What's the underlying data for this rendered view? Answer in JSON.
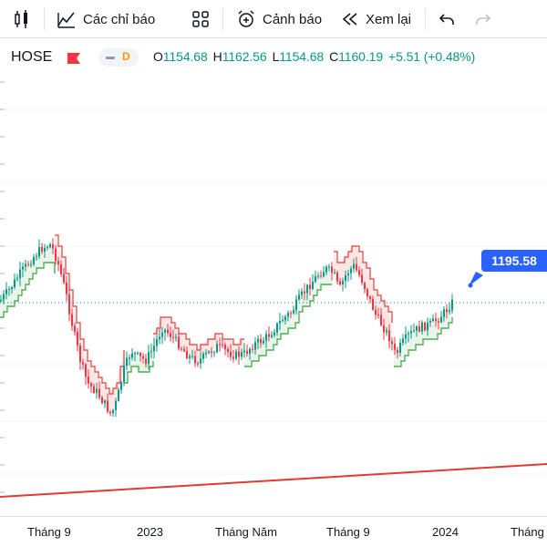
{
  "toolbar": {
    "indicators_label": "Các chỉ báo",
    "alerts_label": "Cảnh báo",
    "replay_label": "Xem lại"
  },
  "legend": {
    "exchange": "HOSE",
    "pill_letter": "D",
    "open_key": "O",
    "open": "1154.68",
    "high_key": "H",
    "high": "1162.56",
    "low_key": "L",
    "low": "1154.68",
    "close_key": "C",
    "close": "1160.19",
    "change": "+5.51 (+0.48%)"
  },
  "price_label": "1195.58",
  "x_axis": [
    "Tháng 9",
    "2023",
    "Tháng Năm",
    "Tháng 9",
    "2024",
    "Tháng"
  ],
  "colors": {
    "up": "#089981",
    "down": "#f23645",
    "accent": "#2962ff",
    "trend_line": "#e53935",
    "stop_up": "#4caf50",
    "stop_down": "#ef5350"
  },
  "chart_data": {
    "type": "candlestick",
    "x_ticks": [
      "Tháng 9",
      "2023",
      "Tháng Năm",
      "Tháng 9",
      "2024",
      "Tháng"
    ],
    "last_price": 1195.58
  }
}
